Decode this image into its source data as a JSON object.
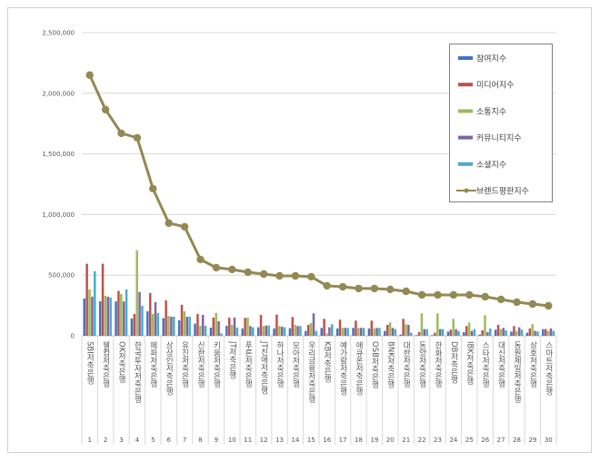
{
  "chart_data": {
    "type": "bar",
    "title": "",
    "xlabel": "",
    "ylabel": "",
    "ylim": [
      0,
      2500000
    ],
    "yticks": [
      "0",
      "500,000",
      "1,000,000",
      "1,500,000",
      "2,000,000",
      "2,500,000"
    ],
    "ytick_values": [
      0,
      500000,
      1000000,
      1500000,
      2000000,
      2500000
    ],
    "grid": true,
    "legend_position": "top-right",
    "categories": [
      "SBI저축은행",
      "웰컴저축은행",
      "OK저축은행",
      "한국투자저축은행",
      "페퍼저축은행",
      "상상인저축은행",
      "유진저축은행",
      "신한저축은행",
      "키움저축은행",
      "JT저축은행",
      "푸른저축은행",
      "JT친애저축은행",
      "하나저축은행",
      "모아저축은행",
      "우리금융저축은행",
      "KB저축은행",
      "예가람저축은행",
      "애큐온저축은행",
      "OSB저축은행",
      "BNK저축은행",
      "대한저축은행",
      "동양저축은행",
      "한화저축은행",
      "DB저축은행",
      "IBK저축은행",
      "스타저축은행",
      "대신저축은행",
      "동원제일저축은행",
      "삼호저축은행",
      "스마트저축은행"
    ],
    "ranks": [
      "1",
      "2",
      "3",
      "4",
      "5",
      "6",
      "7",
      "8",
      "9",
      "10",
      "11",
      "12",
      "13",
      "14",
      "15",
      "16",
      "17",
      "18",
      "19",
      "20",
      "21",
      "22",
      "23",
      "24",
      "25",
      "26",
      "27",
      "28",
      "29",
      "30"
    ],
    "series": [
      {
        "name": "참여지수",
        "type": "bar",
        "color": "#4472c4",
        "values": [
          307000,
          285000,
          283000,
          142000,
          202000,
          145000,
          127000,
          100000,
          67000,
          82000,
          60000,
          70000,
          60000,
          62000,
          40000,
          65000,
          60000,
          65000,
          60000,
          40000,
          10000,
          5000,
          5000,
          35000,
          30000,
          10000,
          50000,
          35000,
          25000,
          55000
        ]
      },
      {
        "name": "미디어지수",
        "type": "bar",
        "color": "#c0504d",
        "values": [
          594000,
          594000,
          370000,
          180000,
          352000,
          292000,
          255000,
          180000,
          150000,
          149000,
          148000,
          172000,
          175000,
          155000,
          90000,
          140000,
          133000,
          125000,
          125000,
          90000,
          140000,
          30000,
          25000,
          50000,
          80000,
          45000,
          90000,
          80000,
          60000,
          55000
        ]
      },
      {
        "name": "소통지수",
        "type": "bar",
        "color": "#9bbb59",
        "values": [
          382000,
          330000,
          345000,
          705000,
          180000,
          165000,
          202000,
          82000,
          187000,
          90000,
          150000,
          80000,
          80000,
          90000,
          105000,
          20000,
          65000,
          65000,
          60000,
          110000,
          95000,
          185000,
          185000,
          140000,
          110000,
          170000,
          55000,
          40000,
          95000,
          40000
        ]
      },
      {
        "name": "커뮤니티지수",
        "type": "bar",
        "color": "#8064a2",
        "values": [
          322000,
          322000,
          283000,
          360000,
          277000,
          157000,
          157000,
          172000,
          120000,
          150000,
          80000,
          84000,
          75000,
          80000,
          185000,
          70000,
          65000,
          65000,
          65000,
          65000,
          90000,
          55000,
          55000,
          55000,
          40000,
          30000,
          65000,
          70000,
          40000,
          60000
        ]
      },
      {
        "name": "소셜지수",
        "type": "bar",
        "color": "#4bacc6",
        "values": [
          532000,
          315000,
          382000,
          247000,
          187000,
          157000,
          157000,
          82000,
          20000,
          67000,
          70000,
          84000,
          70000,
          80000,
          40000,
          95000,
          65000,
          65000,
          65000,
          55000,
          25000,
          55000,
          55000,
          40000,
          55000,
          60000,
          45000,
          50000,
          35000,
          40000
        ]
      },
      {
        "name": "브랜드평판지수",
        "type": "line",
        "color": "#938953",
        "values": [
          2150000,
          1865000,
          1670000,
          1633000,
          1213000,
          929000,
          899000,
          629000,
          562000,
          547000,
          524000,
          509000,
          494000,
          494000,
          487000,
          412000,
          404000,
          390000,
          390000,
          382000,
          367000,
          337000,
          337000,
          337000,
          337000,
          322000,
          300000,
          277000,
          262000,
          247000
        ]
      }
    ]
  }
}
